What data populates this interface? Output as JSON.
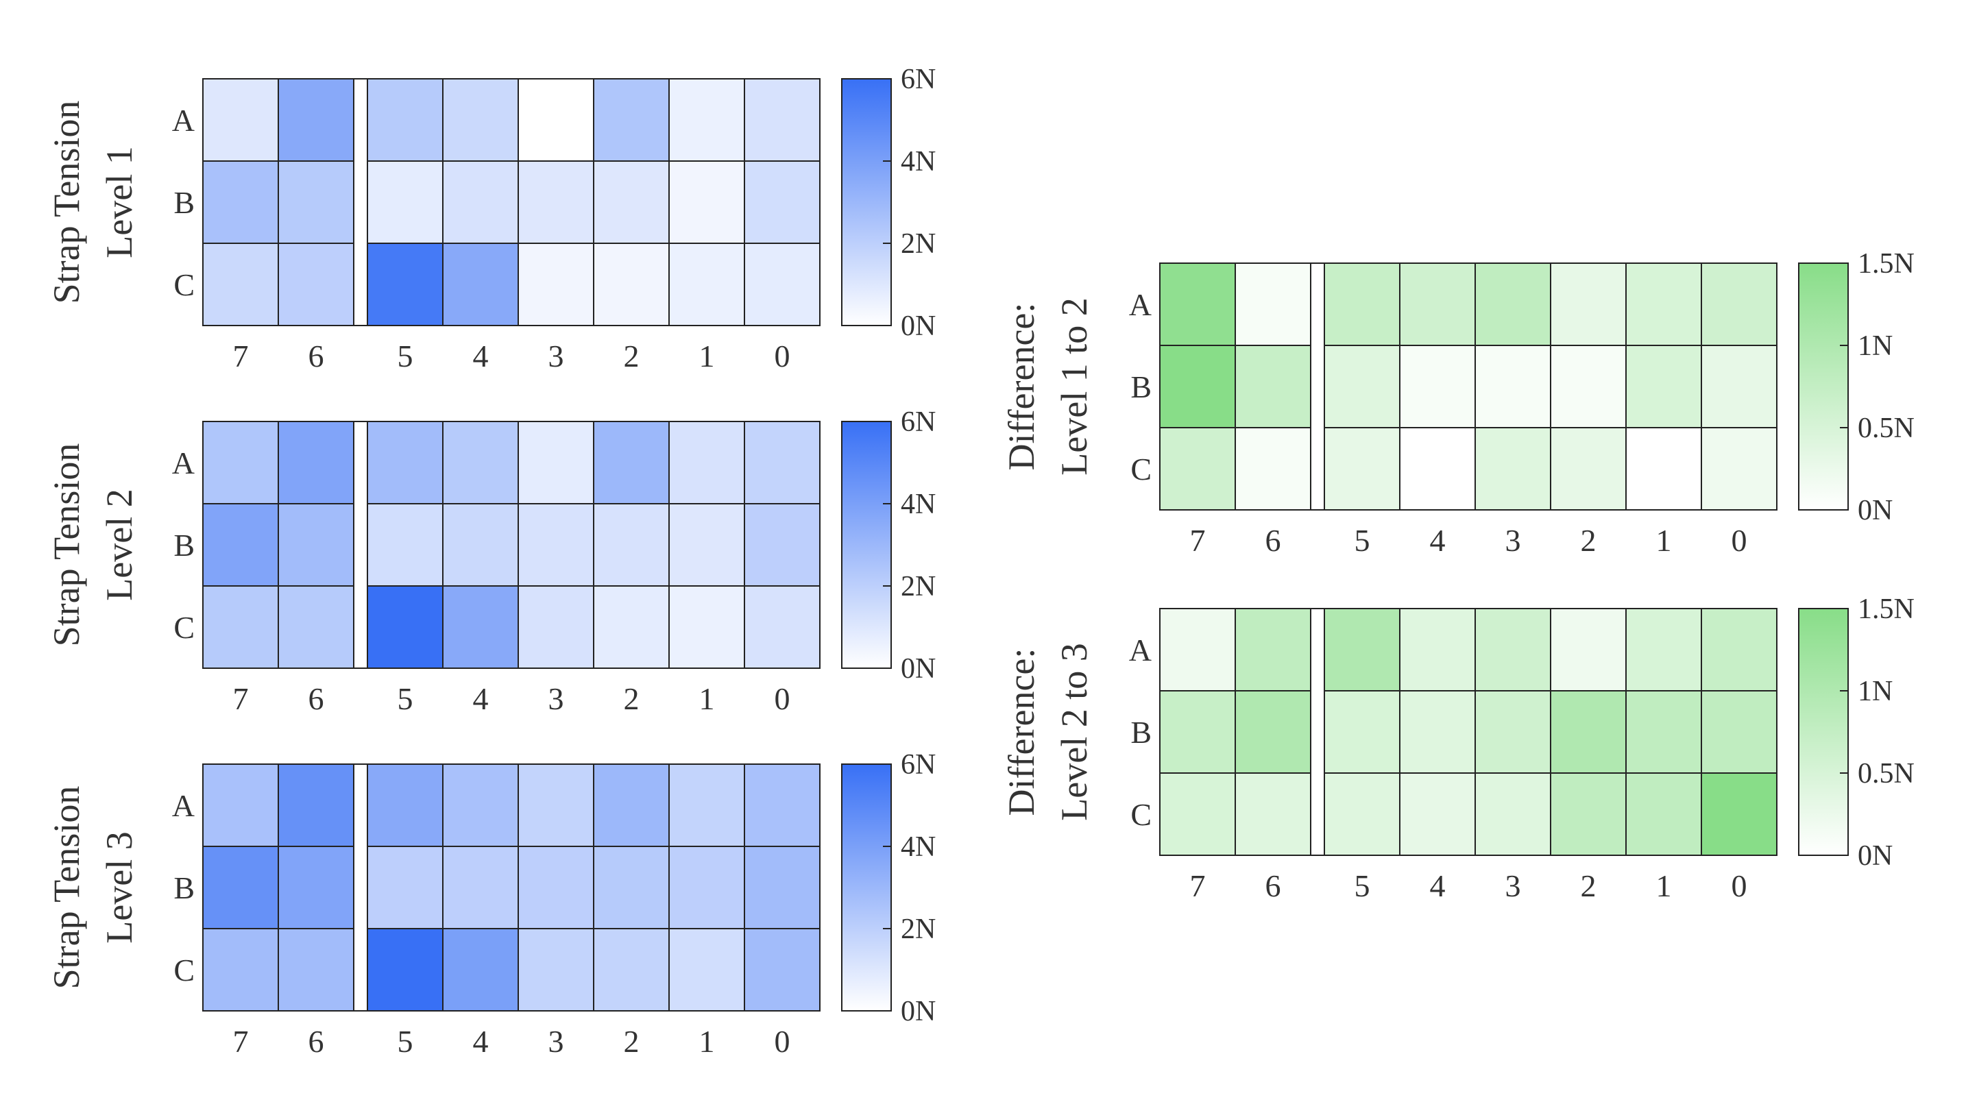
{
  "chart_data": [
    {
      "type": "heatmap",
      "ylabel_lines": [
        "Strap Tension",
        "Level 1"
      ],
      "x_categories": [
        "7",
        "6",
        "5",
        "4",
        "3",
        "2",
        "1",
        "0"
      ],
      "y_categories": [
        "A",
        "B",
        "C"
      ],
      "values": [
        [
          1.0,
          3.6,
          2.2,
          1.6,
          0.0,
          2.4,
          0.6,
          1.2
        ],
        [
          2.6,
          2.2,
          0.8,
          1.2,
          1.0,
          1.0,
          0.4,
          1.4
        ],
        [
          1.6,
          2.0,
          5.6,
          3.6,
          0.4,
          0.4,
          0.6,
          0.8
        ]
      ],
      "colorbar": {
        "min": 0,
        "max": 6,
        "ticks": [
          "0N",
          "2N",
          "4N",
          "6N"
        ],
        "color_low": "#ffffff",
        "color_high": "#3870f5"
      }
    },
    {
      "type": "heatmap",
      "ylabel_lines": [
        "Strap Tension",
        "Level 2"
      ],
      "x_categories": [
        "7",
        "6",
        "5",
        "4",
        "3",
        "2",
        "1",
        "0"
      ],
      "y_categories": [
        "A",
        "B",
        "C"
      ],
      "values": [
        [
          2.4,
          3.8,
          2.8,
          2.2,
          0.8,
          3.0,
          1.2,
          1.8
        ],
        [
          3.8,
          2.8,
          1.4,
          1.6,
          1.2,
          1.2,
          1.0,
          2.0
        ],
        [
          2.2,
          2.2,
          6.0,
          3.6,
          1.2,
          0.8,
          0.6,
          1.2
        ]
      ],
      "colorbar": {
        "min": 0,
        "max": 6,
        "ticks": [
          "0N",
          "2N",
          "4N",
          "6N"
        ],
        "color_low": "#ffffff",
        "color_high": "#3870f5"
      }
    },
    {
      "type": "heatmap",
      "ylabel_lines": [
        "Strap Tension",
        "Level 3"
      ],
      "x_categories": [
        "7",
        "6",
        "5",
        "4",
        "3",
        "2",
        "1",
        "0"
      ],
      "y_categories": [
        "A",
        "B",
        "C"
      ],
      "values": [
        [
          2.6,
          4.6,
          3.6,
          2.6,
          1.8,
          3.0,
          1.8,
          2.6
        ],
        [
          4.6,
          3.8,
          2.0,
          2.0,
          2.0,
          2.2,
          2.0,
          2.8
        ],
        [
          2.8,
          2.8,
          6.0,
          4.0,
          1.8,
          1.8,
          1.4,
          2.8
        ]
      ],
      "colorbar": {
        "min": 0,
        "max": 6,
        "ticks": [
          "0N",
          "2N",
          "4N",
          "6N"
        ],
        "color_low": "#ffffff",
        "color_high": "#3870f5"
      }
    },
    {
      "type": "heatmap",
      "ylabel_lines": [
        "Difference:",
        "Level 1 to 2"
      ],
      "x_categories": [
        "7",
        "6",
        "5",
        "4",
        "3",
        "2",
        "1",
        "0"
      ],
      "y_categories": [
        "A",
        "B",
        "C"
      ],
      "values": [
        [
          1.4,
          0.1,
          0.7,
          0.6,
          0.8,
          0.3,
          0.5,
          0.6
        ],
        [
          1.5,
          0.7,
          0.4,
          0.1,
          0.1,
          0.1,
          0.5,
          0.3
        ],
        [
          0.6,
          0.1,
          0.3,
          0.0,
          0.4,
          0.3,
          0.0,
          0.2
        ]
      ],
      "colorbar": {
        "min": 0,
        "max": 1.5,
        "ticks": [
          "0N",
          "0.5N",
          "1N",
          "1.5N"
        ],
        "color_low": "#ffffff",
        "color_high": "#88dd88"
      }
    },
    {
      "type": "heatmap",
      "ylabel_lines": [
        "Difference:",
        "Level 2 to 3"
      ],
      "x_categories": [
        "7",
        "6",
        "5",
        "4",
        "3",
        "2",
        "1",
        "0"
      ],
      "y_categories": [
        "A",
        "B",
        "C"
      ],
      "values": [
        [
          0.2,
          0.8,
          1.0,
          0.4,
          0.6,
          0.2,
          0.5,
          0.7
        ],
        [
          0.7,
          1.0,
          0.5,
          0.4,
          0.6,
          1.0,
          0.8,
          0.8
        ],
        [
          0.5,
          0.4,
          0.4,
          0.3,
          0.4,
          0.8,
          0.8,
          1.5
        ]
      ],
      "colorbar": {
        "min": 0,
        "max": 1.5,
        "ticks": [
          "0N",
          "0.5N",
          "1N",
          "1.5N"
        ],
        "color_low": "#ffffff",
        "color_high": "#88dd88"
      }
    }
  ]
}
